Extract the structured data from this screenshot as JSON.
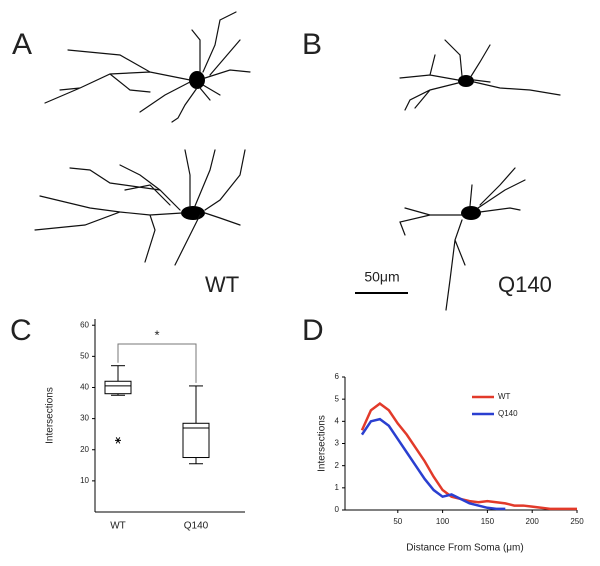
{
  "panels": {
    "a": "A",
    "b": "B",
    "c": "C",
    "d": "D"
  },
  "labels": {
    "wt": "WT",
    "q140": "Q140",
    "scale_bar": "50μm"
  },
  "chart_data": [
    {
      "type": "box",
      "ylabel": "Intersections",
      "categories": [
        "WT",
        "Q140"
      ],
      "boxes": [
        {
          "min": 37.5,
          "q1": 38,
          "median": 40.5,
          "q3": 42,
          "max": 47,
          "outliers": [
            23
          ]
        },
        {
          "min": 15.5,
          "q1": 17.5,
          "median": 27,
          "q3": 28.5,
          "max": 40.5,
          "outliers": []
        }
      ],
      "ylim": [
        0,
        62
      ],
      "yticks": [
        10,
        20,
        30,
        40,
        50,
        60
      ],
      "annotation": "*",
      "color": "#000000"
    },
    {
      "type": "line",
      "xlabel": "Distance From Soma (μm)",
      "ylabel": "Intersections",
      "x": [
        10,
        20,
        30,
        40,
        50,
        60,
        70,
        80,
        90,
        100,
        110,
        120,
        130,
        140,
        150,
        160,
        170,
        180,
        190,
        200,
        210,
        220,
        230,
        240,
        250
      ],
      "series": [
        {
          "name": "WT",
          "color": "#e23a2a",
          "values": [
            3.6,
            4.5,
            4.8,
            4.5,
            3.9,
            3.4,
            2.8,
            2.2,
            1.5,
            0.9,
            0.6,
            0.5,
            0.4,
            0.35,
            0.4,
            0.35,
            0.3,
            0.2,
            0.2,
            0.15,
            0.1,
            0.05,
            0.05,
            0.05,
            0.05
          ]
        },
        {
          "name": "Q140",
          "color": "#2a3fd0",
          "values": [
            3.4,
            4.0,
            4.1,
            3.8,
            3.2,
            2.6,
            2.0,
            1.4,
            0.9,
            0.6,
            0.7,
            0.5,
            0.3,
            0.2,
            0.1,
            0.05,
            0.05,
            null,
            null,
            null,
            null,
            null,
            null,
            null,
            null
          ]
        }
      ],
      "xlim": [
        0,
        250
      ],
      "xticks": [
        50,
        100,
        150,
        200,
        250
      ],
      "ylim": [
        0,
        6
      ],
      "yticks": [
        0,
        1,
        2,
        3,
        4,
        5,
        6
      ],
      "legend": "upper right"
    }
  ]
}
